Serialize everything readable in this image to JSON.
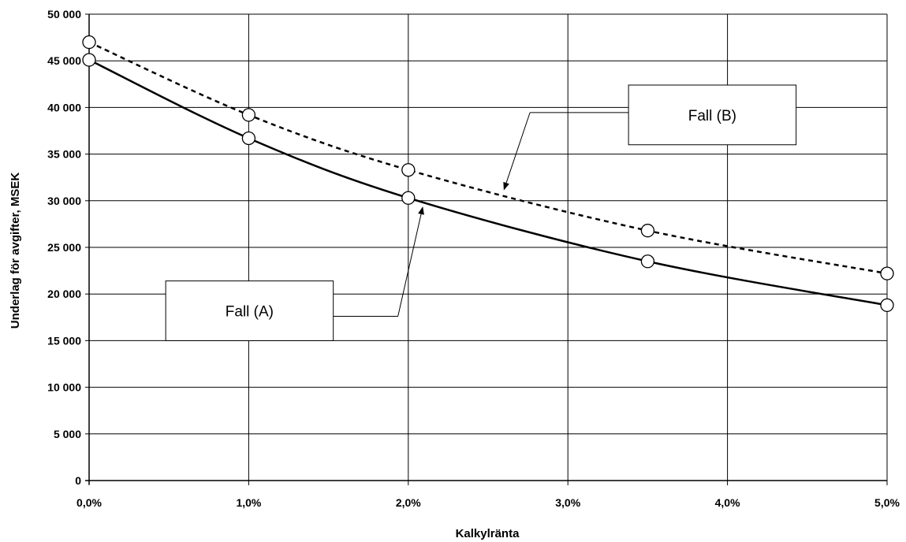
{
  "chart_data": {
    "type": "line",
    "xlabel": "Kalkylränta",
    "ylabel": "Underlag för avgifter, MSEK",
    "xlim": [
      0,
      5
    ],
    "ylim": [
      0,
      50000
    ],
    "x_ticks": [
      {
        "value": 0,
        "label": "0,0%"
      },
      {
        "value": 1,
        "label": "1,0%"
      },
      {
        "value": 2,
        "label": "2,0%"
      },
      {
        "value": 3,
        "label": "3,0%"
      },
      {
        "value": 4,
        "label": "4,0%"
      },
      {
        "value": 5,
        "label": "5,0%"
      }
    ],
    "y_ticks": [
      {
        "value": 0,
        "label": "0"
      },
      {
        "value": 5000,
        "label": "5 000"
      },
      {
        "value": 10000,
        "label": "10 000"
      },
      {
        "value": 15000,
        "label": "15 000"
      },
      {
        "value": 20000,
        "label": "20 000"
      },
      {
        "value": 25000,
        "label": "25 000"
      },
      {
        "value": 30000,
        "label": "30 000"
      },
      {
        "value": 35000,
        "label": "35 000"
      },
      {
        "value": 40000,
        "label": "40 000"
      },
      {
        "value": 45000,
        "label": "45 000"
      },
      {
        "value": 50000,
        "label": "50 000"
      }
    ],
    "grid": true,
    "legend": "none",
    "series": [
      {
        "name": "Fall (A)",
        "line_style": "solid",
        "color": "#000000",
        "points": [
          {
            "x": 0,
            "y": 45100
          },
          {
            "x": 1,
            "y": 36700
          },
          {
            "x": 2,
            "y": 30300
          },
          {
            "x": 3.5,
            "y": 23500
          },
          {
            "x": 5,
            "y": 18800
          }
        ]
      },
      {
        "name": "Fall (B)",
        "line_style": "dashed",
        "color": "#000000",
        "points": [
          {
            "x": 0,
            "y": 47000
          },
          {
            "x": 1,
            "y": 39200
          },
          {
            "x": 2,
            "y": 33300
          },
          {
            "x": 3.5,
            "y": 26800
          },
          {
            "x": 5,
            "y": 22200
          }
        ]
      }
    ],
    "annotations": [
      {
        "series": 0,
        "text": "Fall (A)",
        "box_x": [
          0.48,
          1.53
        ],
        "box_y": [
          15000,
          21400
        ],
        "arrow_to": [
          2.09,
          29300
        ]
      },
      {
        "series": 1,
        "text": "Fall (B)",
        "box_x": [
          3.38,
          4.43
        ],
        "box_y": [
          36000,
          42400
        ],
        "arrow_to": [
          2.6,
          31200
        ]
      }
    ]
  }
}
